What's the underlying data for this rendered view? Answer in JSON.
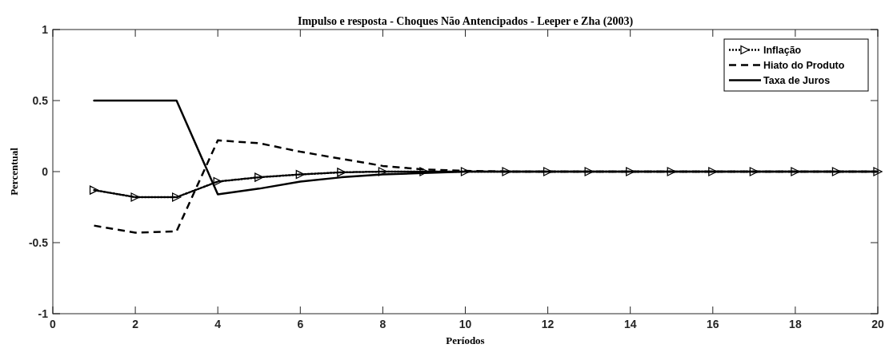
{
  "chart_data": {
    "type": "line",
    "title": "Impulso e resposta - Choques Não Antencipados - Leeper e Zha (2003)",
    "xlabel": "Períodos",
    "ylabel": "Percentual",
    "x": [
      1,
      2,
      3,
      4,
      5,
      6,
      7,
      8,
      9,
      10,
      11,
      12,
      13,
      14,
      15,
      16,
      17,
      18,
      19,
      20
    ],
    "series": [
      {
        "name": "Inflação",
        "color": "#000000",
        "line_style": "dotted",
        "marker": "triangle",
        "values": [
          -0.13,
          -0.18,
          -0.18,
          -0.07,
          -0.04,
          -0.02,
          -0.005,
          0,
          0,
          0,
          0,
          0,
          0,
          0,
          0,
          0,
          0,
          0,
          0,
          0
        ]
      },
      {
        "name": "Hiato do Produto",
        "color": "#000000",
        "line_style": "dashed",
        "values": [
          -0.38,
          -0.43,
          -0.42,
          0.22,
          0.2,
          0.14,
          0.09,
          0.04,
          0.015,
          0.005,
          0,
          0,
          0,
          0,
          0,
          0,
          0,
          0,
          0,
          0
        ]
      },
      {
        "name": "Taxa de Juros",
        "color": "#000000",
        "line_style": "solid",
        "values": [
          0.5,
          0.5,
          0.5,
          -0.16,
          -0.12,
          -0.07,
          -0.04,
          -0.02,
          -0.01,
          0,
          0,
          0,
          0,
          0,
          0,
          0,
          0,
          0,
          0,
          0
        ]
      }
    ],
    "xlim": [
      0,
      20
    ],
    "xticks": [
      0,
      2,
      4,
      6,
      8,
      10,
      12,
      14,
      16,
      18,
      20
    ],
    "ylim": [
      -1,
      1
    ],
    "yticks": [
      -1,
      -0.5,
      0,
      0.5,
      1
    ],
    "grid": false,
    "legend": "top right"
  }
}
